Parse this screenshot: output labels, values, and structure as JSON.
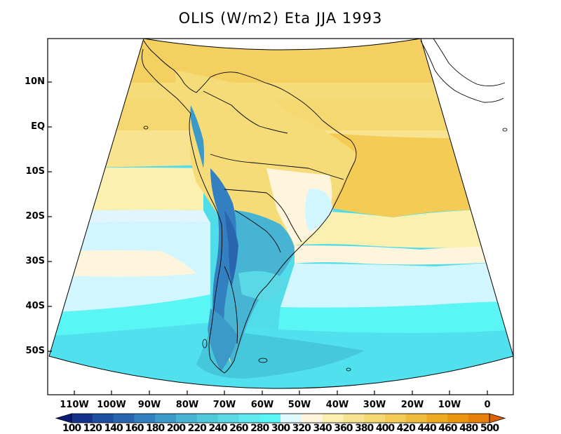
{
  "title": "OLIS (W/m2) Eta JJA 1993",
  "lat_labels": [
    "10N",
    "EQ",
    "10S",
    "20S",
    "30S",
    "40S",
    "50S"
  ],
  "lon_labels": [
    "110W",
    "100W",
    "90W",
    "80W",
    "70W",
    "60W",
    "50W",
    "40W",
    "30W",
    "20W",
    "10W",
    "0"
  ],
  "colorbar": {
    "colors": [
      "#0a1a78",
      "#14328c",
      "#1e4ea0",
      "#2a66b0",
      "#3380c0",
      "#3c9ac8",
      "#46b4d2",
      "#50c8dc",
      "#5ad8e6",
      "#5ee8f0",
      "#5af5f5",
      "#dffaff",
      "#fff5dc",
      "#fcf0b0",
      "#f8e490",
      "#f6d870",
      "#f3cb55",
      "#f0bc3c",
      "#eeaa20",
      "#ec9610",
      "#e68008",
      "#dc6400"
    ],
    "labels": [
      "100",
      "120",
      "140",
      "160",
      "180",
      "200",
      "220",
      "240",
      "260",
      "280",
      "300",
      "320",
      "340",
      "360",
      "380",
      "400",
      "420",
      "440",
      "460",
      "480",
      "500"
    ]
  }
}
